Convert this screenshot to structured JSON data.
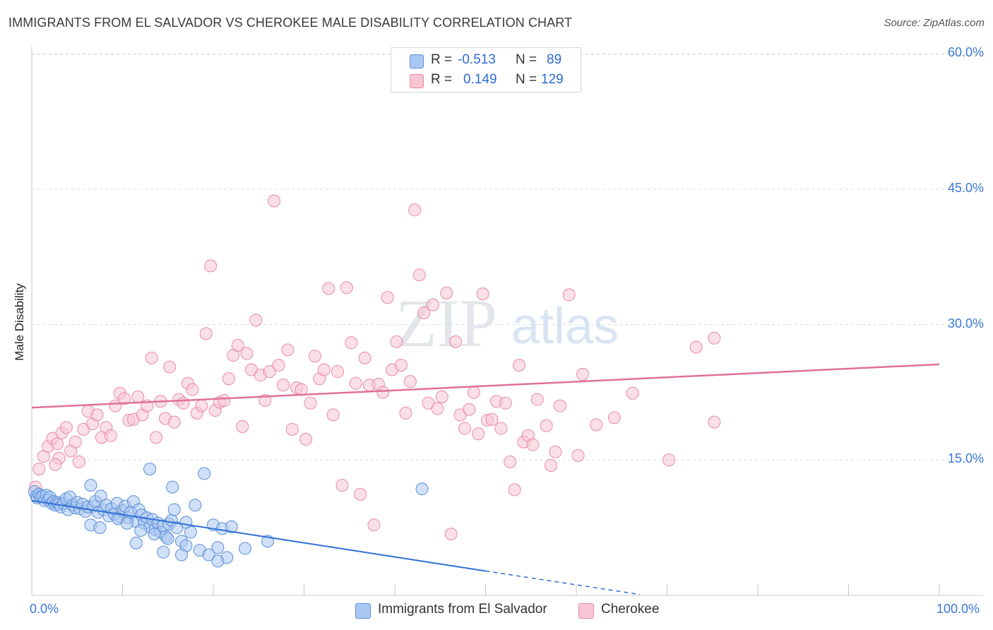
{
  "header": {
    "title": "IMMIGRANTS FROM EL SALVADOR VS CHEROKEE MALE DISABILITY CORRELATION CHART",
    "source": "Source: ZipAtlas.com"
  },
  "legend": {
    "row1": {
      "r_label": "R =",
      "r_value": "-0.513",
      "n_label": "N =",
      "n_value": "89"
    },
    "row2": {
      "r_label": "R =",
      "r_value": "0.149",
      "n_label": "N =",
      "n_value": "129"
    }
  },
  "watermark": {
    "zip": "ZIP",
    "atlas": "atlas"
  },
  "colors": {
    "blue_fill": "#a9c7f2",
    "blue_stroke": "#5b8fd6",
    "blue_line": "#2f6fd6",
    "pink_fill": "#f8c5d4",
    "pink_stroke": "#e88aa6",
    "pink_line": "#e0709a",
    "axis_text": "#3b78d8",
    "grid": "#dcdcdc"
  },
  "chart_data": {
    "type": "scatter",
    "title": "IMMIGRANTS FROM EL SALVADOR VS CHEROKEE MALE DISABILITY CORRELATION CHART",
    "xlabel": "",
    "ylabel": "Male Disability",
    "xlim": [
      0,
      100
    ],
    "ylim": [
      0,
      62
    ],
    "x_tick_labels": [
      "0.0%",
      "100.0%"
    ],
    "y_ticks": [
      15,
      30,
      45,
      60
    ],
    "y_tick_labels": [
      "15.0%",
      "30.0%",
      "45.0%",
      "60.0%"
    ],
    "grid": true,
    "legend_position": "bottom",
    "series": [
      {
        "name": "Immigrants from El Salvador",
        "R": -0.513,
        "N": 89,
        "trend": {
          "x0": 0,
          "y0": 10.5,
          "x1": 50,
          "y1": 2.7,
          "dashed_to_x": 67,
          "dashed_to_y": 0.1
        },
        "points": [
          [
            0.3,
            11.5
          ],
          [
            0.5,
            11.0
          ],
          [
            0.6,
            10.8
          ],
          [
            0.8,
            11.2
          ],
          [
            1.0,
            10.9
          ],
          [
            1.2,
            11.0
          ],
          [
            1.4,
            10.5
          ],
          [
            1.6,
            11.1
          ],
          [
            1.8,
            10.6
          ],
          [
            2.0,
            10.9
          ],
          [
            2.2,
            10.2
          ],
          [
            2.4,
            10.4
          ],
          [
            2.6,
            10.0
          ],
          [
            2.8,
            10.3
          ],
          [
            3.0,
            10.1
          ],
          [
            3.2,
            9.8
          ],
          [
            3.5,
            10.2
          ],
          [
            3.8,
            10.7
          ],
          [
            4.0,
            9.5
          ],
          [
            4.2,
            10.9
          ],
          [
            4.5,
            10.0
          ],
          [
            4.8,
            9.7
          ],
          [
            5.0,
            10.3
          ],
          [
            5.3,
            9.6
          ],
          [
            5.6,
            10.1
          ],
          [
            5.9,
            9.3
          ],
          [
            6.2,
            9.8
          ],
          [
            6.5,
            12.2
          ],
          [
            6.8,
            9.9
          ],
          [
            7.0,
            10.4
          ],
          [
            7.3,
            9.2
          ],
          [
            7.6,
            11.0
          ],
          [
            7.9,
            9.5
          ],
          [
            8.2,
            10.0
          ],
          [
            8.5,
            8.8
          ],
          [
            8.8,
            9.6
          ],
          [
            9.1,
            9.0
          ],
          [
            9.4,
            10.2
          ],
          [
            9.7,
            8.7
          ],
          [
            10.0,
            9.4
          ],
          [
            10.3,
            9.9
          ],
          [
            10.6,
            8.6
          ],
          [
            10.9,
            9.2
          ],
          [
            11.2,
            10.4
          ],
          [
            11.5,
            8.2
          ],
          [
            11.8,
            9.5
          ],
          [
            12.1,
            8.9
          ],
          [
            12.4,
            8.0
          ],
          [
            12.7,
            8.6
          ],
          [
            13.0,
            7.6
          ],
          [
            13.3,
            8.4
          ],
          [
            13.6,
            7.3
          ],
          [
            13.9,
            8.0
          ],
          [
            14.2,
            7.0
          ],
          [
            14.5,
            7.7
          ],
          [
            14.8,
            6.5
          ],
          [
            15.1,
            7.9
          ],
          [
            15.4,
            8.3
          ],
          [
            15.7,
            9.5
          ],
          [
            16.0,
            7.5
          ],
          [
            16.5,
            6.0
          ],
          [
            17.0,
            5.5
          ],
          [
            17.5,
            7.0
          ],
          [
            18.0,
            10.0
          ],
          [
            18.5,
            5.0
          ],
          [
            19.0,
            13.5
          ],
          [
            19.5,
            4.5
          ],
          [
            20.0,
            7.8
          ],
          [
            20.5,
            5.3
          ],
          [
            21.0,
            7.4
          ],
          [
            21.5,
            4.2
          ],
          [
            22.0,
            7.6
          ],
          [
            11.5,
            5.8
          ],
          [
            13.0,
            14.0
          ],
          [
            14.5,
            4.8
          ],
          [
            15.5,
            12.0
          ],
          [
            16.5,
            4.5
          ],
          [
            20.5,
            3.8
          ],
          [
            23.5,
            5.2
          ],
          [
            26.0,
            6.0
          ],
          [
            43.0,
            11.8
          ],
          [
            6.5,
            7.8
          ],
          [
            7.5,
            7.5
          ],
          [
            9.5,
            8.5
          ],
          [
            10.5,
            8.0
          ],
          [
            12.0,
            7.2
          ],
          [
            13.5,
            6.8
          ],
          [
            15.0,
            6.3
          ],
          [
            17.0,
            8.1
          ]
        ]
      },
      {
        "name": "Cherokee",
        "R": 0.149,
        "N": 129,
        "trend": {
          "x0": 0,
          "y0": 20.8,
          "x1": 100,
          "y1": 25.6
        },
        "points": [
          [
            0.4,
            12.0
          ],
          [
            0.8,
            14.0
          ],
          [
            1.3,
            15.4
          ],
          [
            1.8,
            16.5
          ],
          [
            2.3,
            17.4
          ],
          [
            2.8,
            16.8
          ],
          [
            3.3,
            18.0
          ],
          [
            3.8,
            18.6
          ],
          [
            4.3,
            16.0
          ],
          [
            4.8,
            17.0
          ],
          [
            5.2,
            14.8
          ],
          [
            5.7,
            18.4
          ],
          [
            6.2,
            20.4
          ],
          [
            6.7,
            19.0
          ],
          [
            7.2,
            20.0
          ],
          [
            7.7,
            17.5
          ],
          [
            8.2,
            18.6
          ],
          [
            8.7,
            17.7
          ],
          [
            9.2,
            21.0
          ],
          [
            9.7,
            22.4
          ],
          [
            10.2,
            21.8
          ],
          [
            10.7,
            19.4
          ],
          [
            11.2,
            19.5
          ],
          [
            11.7,
            22.0
          ],
          [
            12.2,
            20.0
          ],
          [
            12.7,
            21.0
          ],
          [
            13.2,
            26.3
          ],
          [
            13.7,
            17.5
          ],
          [
            14.2,
            21.5
          ],
          [
            14.7,
            19.6
          ],
          [
            15.2,
            25.3
          ],
          [
            15.7,
            19.2
          ],
          [
            16.2,
            21.7
          ],
          [
            16.7,
            21.3
          ],
          [
            17.2,
            23.5
          ],
          [
            17.7,
            22.8
          ],
          [
            18.2,
            20.2
          ],
          [
            18.7,
            21.0
          ],
          [
            19.2,
            29.0
          ],
          [
            19.7,
            36.5
          ],
          [
            20.2,
            20.5
          ],
          [
            20.7,
            21.4
          ],
          [
            21.2,
            21.6
          ],
          [
            21.7,
            24.0
          ],
          [
            22.2,
            26.6
          ],
          [
            22.7,
            27.7
          ],
          [
            23.2,
            18.7
          ],
          [
            23.7,
            26.8
          ],
          [
            24.2,
            25.0
          ],
          [
            24.7,
            30.5
          ],
          [
            25.2,
            24.4
          ],
          [
            25.7,
            21.6
          ],
          [
            26.2,
            24.8
          ],
          [
            26.7,
            43.7
          ],
          [
            27.2,
            25.5
          ],
          [
            27.7,
            23.3
          ],
          [
            28.2,
            27.2
          ],
          [
            28.7,
            18.4
          ],
          [
            29.2,
            23.0
          ],
          [
            29.7,
            22.8
          ],
          [
            30.2,
            17.3
          ],
          [
            30.7,
            21.3
          ],
          [
            31.2,
            26.5
          ],
          [
            31.7,
            24.0
          ],
          [
            32.2,
            25.0
          ],
          [
            32.7,
            34.0
          ],
          [
            33.2,
            20.0
          ],
          [
            33.7,
            24.8
          ],
          [
            34.2,
            12.2
          ],
          [
            34.7,
            34.1
          ],
          [
            35.2,
            28.0
          ],
          [
            35.7,
            23.5
          ],
          [
            36.2,
            11.2
          ],
          [
            36.7,
            26.3
          ],
          [
            37.2,
            23.3
          ],
          [
            37.7,
            7.8
          ],
          [
            38.2,
            23.4
          ],
          [
            38.7,
            22.5
          ],
          [
            39.2,
            33.0
          ],
          [
            39.7,
            25.0
          ],
          [
            40.2,
            28.1
          ],
          [
            40.7,
            25.5
          ],
          [
            41.2,
            20.2
          ],
          [
            41.7,
            23.7
          ],
          [
            42.2,
            42.7
          ],
          [
            42.7,
            35.5
          ],
          [
            43.2,
            31.3
          ],
          [
            43.7,
            21.3
          ],
          [
            44.2,
            32.2
          ],
          [
            44.7,
            20.7
          ],
          [
            45.2,
            22.0
          ],
          [
            45.7,
            33.5
          ],
          [
            46.2,
            6.8
          ],
          [
            46.7,
            28.1
          ],
          [
            47.2,
            20.0
          ],
          [
            47.7,
            18.5
          ],
          [
            48.2,
            20.6
          ],
          [
            48.7,
            22.5
          ],
          [
            49.2,
            17.9
          ],
          [
            49.7,
            33.4
          ],
          [
            50.2,
            19.4
          ],
          [
            50.7,
            19.5
          ],
          [
            51.2,
            21.5
          ],
          [
            51.7,
            18.5
          ],
          [
            52.2,
            21.3
          ],
          [
            52.7,
            14.8
          ],
          [
            53.2,
            11.7
          ],
          [
            53.7,
            25.5
          ],
          [
            54.2,
            17.0
          ],
          [
            54.7,
            17.7
          ],
          [
            55.2,
            16.7
          ],
          [
            55.7,
            21.7
          ],
          [
            56.2,
            59.0
          ],
          [
            56.7,
            18.8
          ],
          [
            57.2,
            14.4
          ],
          [
            57.7,
            15.9
          ],
          [
            58.2,
            21.0
          ],
          [
            59.2,
            33.3
          ],
          [
            60.2,
            15.5
          ],
          [
            60.7,
            24.5
          ],
          [
            62.2,
            18.9
          ],
          [
            64.2,
            19.7
          ],
          [
            66.2,
            22.4
          ],
          [
            70.2,
            15.0
          ],
          [
            73.2,
            27.5
          ],
          [
            75.2,
            28.5
          ],
          [
            75.2,
            19.2
          ],
          [
            3.0,
            15.2
          ],
          [
            2.6,
            14.5
          ]
        ]
      }
    ]
  }
}
